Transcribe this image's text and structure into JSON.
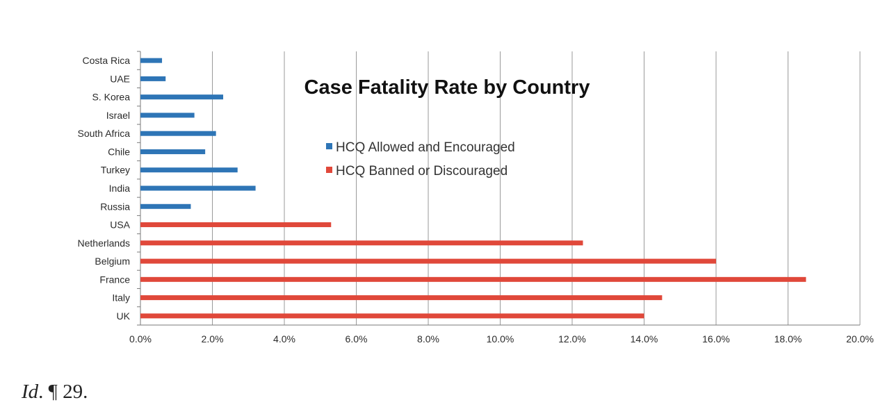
{
  "chart_data": {
    "type": "bar",
    "orientation": "horizontal",
    "title": "Case Fatality Rate by Country",
    "categories": [
      "Costa Rica",
      "UAE",
      "S. Korea",
      "Israel",
      "South Africa",
      "Chile",
      "Turkey",
      "India",
      "Russia",
      "USA",
      "Netherlands",
      "Belgium",
      "France",
      "Italy",
      "UK"
    ],
    "series": [
      {
        "name": "HCQ Allowed and Encouraged",
        "color": "#2e75b6",
        "values": [
          0.6,
          0.7,
          2.3,
          1.5,
          2.1,
          1.8,
          2.7,
          3.2,
          1.4,
          null,
          null,
          null,
          null,
          null,
          null
        ]
      },
      {
        "name": "HCQ Banned or Discouraged",
        "color": "#e0483a",
        "values": [
          null,
          null,
          null,
          null,
          null,
          null,
          null,
          null,
          null,
          5.3,
          12.3,
          16.0,
          18.5,
          14.5,
          14.0
        ]
      }
    ],
    "xlim": [
      0,
      20
    ],
    "xticks": [
      "0.0%",
      "2.0%",
      "4.0%",
      "6.0%",
      "8.0%",
      "10.0%",
      "12.0%",
      "14.0%",
      "16.0%",
      "18.0%",
      "20.0%"
    ],
    "grid": true,
    "legend_position": "upper center"
  },
  "footer": {
    "citation_italic": "Id",
    "citation_rest": ". ¶ 29."
  }
}
